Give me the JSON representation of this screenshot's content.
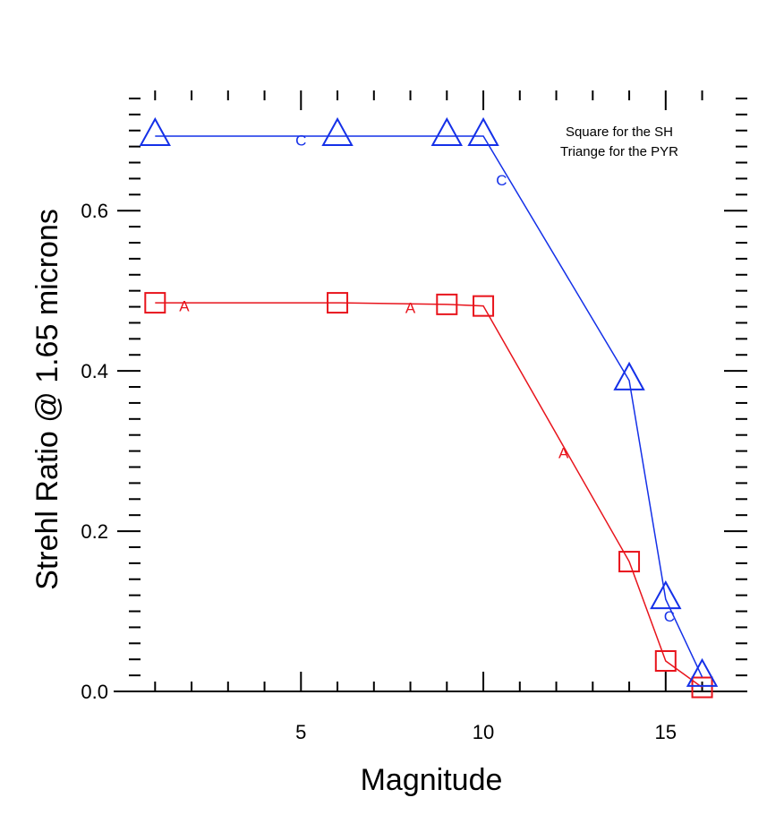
{
  "chart_data": {
    "type": "line",
    "xlabel": "Magnitude",
    "ylabel": "Strehl Ratio @ 1.65 microns",
    "xlim": [
      0.6,
      16.6
    ],
    "ylim": [
      0.0,
      0.75
    ],
    "x_major_ticks": [
      5,
      10,
      15
    ],
    "x_tick_labels": [
      "5",
      "10",
      "15"
    ],
    "y_major_ticks": [
      0.0,
      0.2,
      0.4,
      0.6
    ],
    "y_tick_labels": [
      "0.0",
      "0.2",
      "0.4",
      "0.6"
    ],
    "x_minor_step": 0.5,
    "y_minor_step": 0.02,
    "legend_lines": [
      "Square for the SH",
      "Triange for the PYR"
    ],
    "legend_position": "top-right",
    "series": [
      {
        "color": "#e8141c",
        "marker": "square",
        "x": [
          1,
          6,
          9,
          10,
          14,
          15,
          16
        ],
        "y": [
          0.485,
          0.485,
          0.483,
          0.481,
          0.162,
          0.038,
          0.005
        ]
      },
      {
        "color": "#1430e8",
        "marker": "triangle",
        "x": [
          1,
          6,
          9,
          10,
          14,
          15,
          16
        ],
        "y": [
          0.693,
          0.693,
          0.693,
          0.693,
          0.388,
          0.115,
          0.018
        ]
      }
    ],
    "annotations": [
      {
        "text": "A",
        "x": 1.8,
        "y": 0.481,
        "color": "#e8141c"
      },
      {
        "text": "A",
        "x": 8.0,
        "y": 0.479,
        "color": "#e8141c"
      },
      {
        "text": "A",
        "x": 12.2,
        "y": 0.298,
        "color": "#e8141c"
      },
      {
        "text": "C",
        "x": 5.0,
        "y": 0.688,
        "color": "#1430e8"
      },
      {
        "text": "C",
        "x": 10.5,
        "y": 0.638,
        "color": "#1430e8"
      },
      {
        "text": "C",
        "x": 15.1,
        "y": 0.094,
        "color": "#1430e8"
      }
    ]
  }
}
